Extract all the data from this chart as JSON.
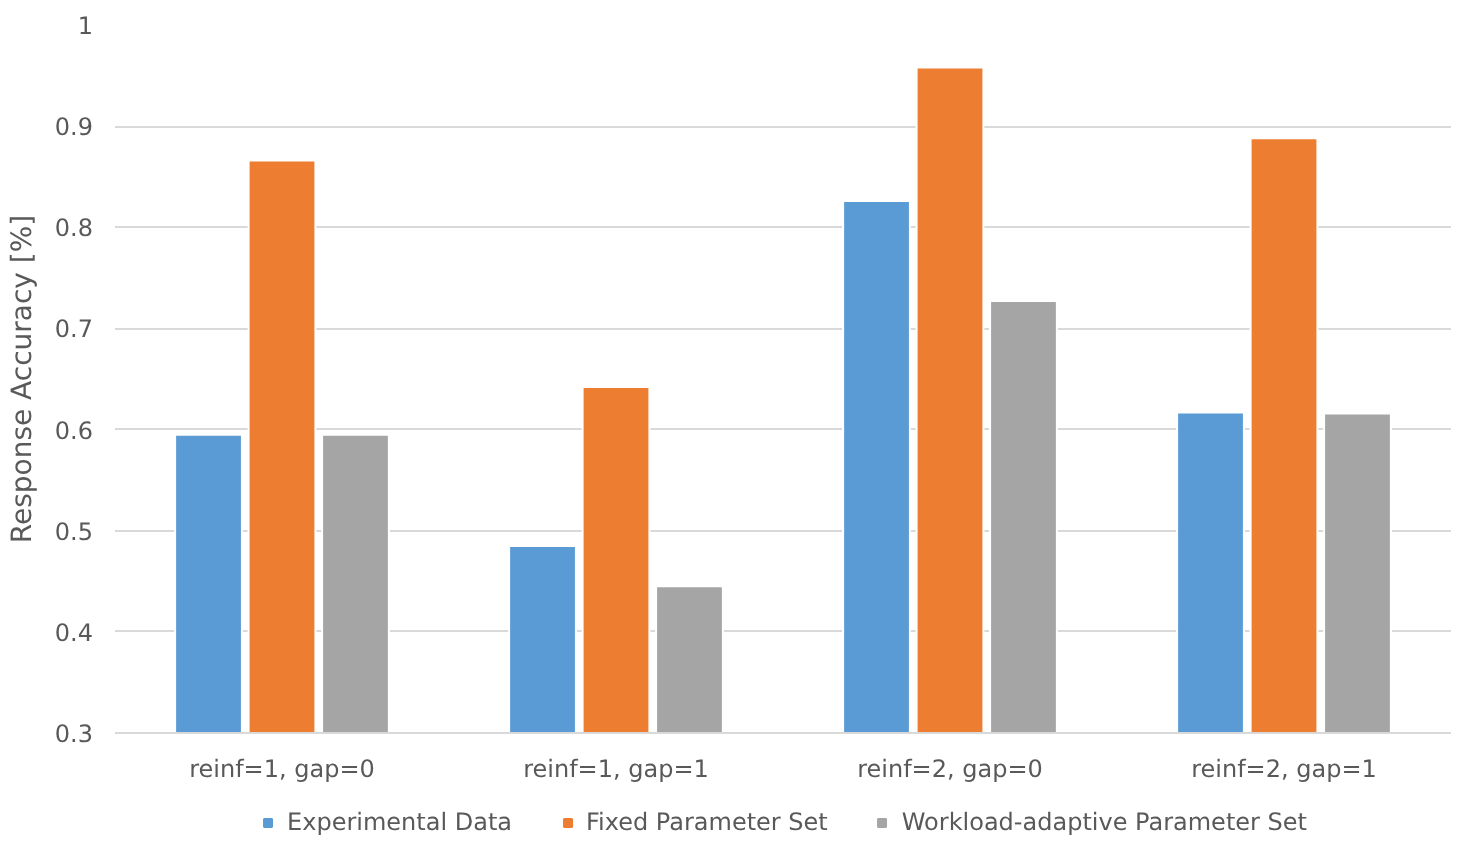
{
  "chart_data": {
    "type": "bar",
    "ylabel": "Response Accuracy [%]",
    "categories": [
      "reinf=1, gap=0",
      "reinf=1, gap=1",
      "reinf=2, gap=0",
      "reinf=2, gap=1"
    ],
    "series": [
      {
        "name": "Experimental Data",
        "color": "#5b9bd5",
        "values": [
          0.595,
          0.485,
          0.826,
          0.617
        ]
      },
      {
        "name": "Fixed Parameter Set",
        "color": "#ed7d31",
        "values": [
          0.866,
          0.642,
          0.958,
          0.888
        ]
      },
      {
        "name": "Workload-adaptive Parameter Set",
        "color": "#a5a5a5",
        "values": [
          0.595,
          0.445,
          0.727,
          0.616
        ]
      }
    ],
    "ylim": [
      0.3,
      1
    ],
    "yticks": [
      0.3,
      0.4,
      0.5,
      0.6,
      0.7,
      0.8,
      0.9,
      {
        "value": 1,
        "label": "1"
      }
    ],
    "grid": "y",
    "legend": "bottom"
  }
}
